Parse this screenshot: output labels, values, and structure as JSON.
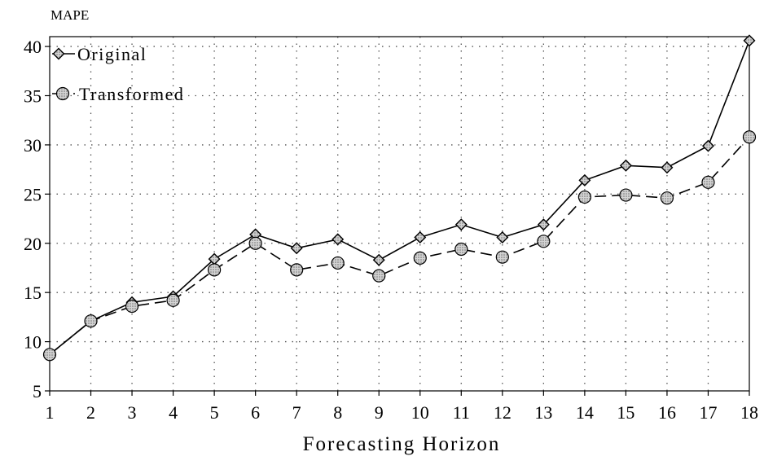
{
  "chart_data": {
    "type": "line",
    "title": "",
    "ylabel": "MAPE",
    "xlabel": "Forecasting Horizon",
    "x": [
      1,
      2,
      3,
      4,
      5,
      6,
      7,
      8,
      9,
      10,
      11,
      12,
      13,
      14,
      15,
      16,
      17,
      18
    ],
    "ylim": [
      5,
      41
    ],
    "yticks": [
      5,
      10,
      15,
      20,
      25,
      30,
      35,
      40
    ],
    "grid": true,
    "legend": "top-left",
    "series": [
      {
        "name": "Original",
        "marker": "diamond",
        "line_style": "solid",
        "values": [
          8.7,
          12.1,
          14.0,
          14.6,
          18.4,
          20.9,
          19.5,
          20.4,
          18.3,
          20.6,
          21.9,
          20.6,
          21.9,
          26.4,
          27.9,
          27.7,
          29.9,
          40.6
        ]
      },
      {
        "name": "Transformed",
        "marker": "circle",
        "line_style": "dashed",
        "values": [
          8.7,
          12.1,
          13.6,
          14.2,
          17.3,
          20.0,
          17.3,
          18.0,
          16.7,
          18.5,
          19.4,
          18.6,
          20.2,
          24.7,
          24.9,
          24.6,
          26.2,
          30.8
        ]
      }
    ]
  }
}
